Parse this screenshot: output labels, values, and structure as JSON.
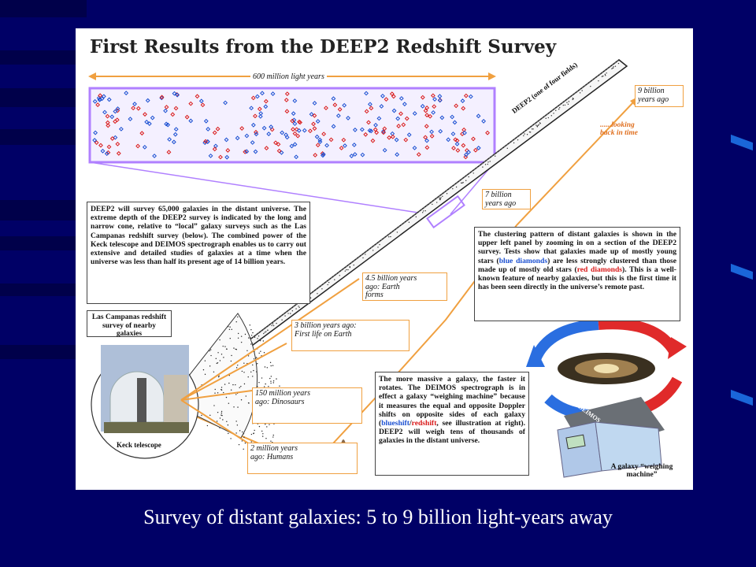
{
  "slide": {
    "caption": "Survey of distant galaxies:  5 to 9 billion light-years away"
  },
  "poster": {
    "title": "First Results from the DEEP2 Redshift Survey",
    "span_label": "600 million light years",
    "cone_label": "DEEP2 (one of four fields)",
    "looking_back": "......looking back in time",
    "intro_text": "DEEP2 will survey 65,000 galaxies in the distant universe.  The extreme depth of the DEEP2 survey is indicated by the long and narrow cone, relative to “local” galaxy surveys such as the Las Campanas redshift survey (below).  The combined power of the Keck telescope and DEIMOS spectrograph enables us to carry out extensive and detailed studies of galaxies at a time when the universe was less than half its present age of 14 billion years.",
    "clustering": {
      "part1": "The clustering pattern of distant galaxies is shown in the upper left panel by zooming in on a section of the DEEP2 survey.  Tests show that galaxies made up of mostly young stars (",
      "blue": "blue diamonds",
      "part2": ") are less strongly clustered than those made up of mostly old stars (",
      "red": "red diamonds",
      "part3": ").  This is a well-known feature of nearby galaxies, but this is the first time it has been seen directly in the universe’s remote past."
    },
    "weighing": {
      "part1": "The more massive a galaxy, the faster it rotates.  The DEIMOS spectrograph is in effect a galaxy “weighing machine” because it measures the equal and opposite Doppler shifts on opposite sides of each galaxy (",
      "blue": "blueshift",
      "sep": "/",
      "red": "redshift",
      "part2": ", see illustration at right).  DEEP2 will weigh tens of thousands of galaxies in the distant universe."
    },
    "las_campanas": "Las Campanas redshift survey of nearby galaxies",
    "keck": "Keck telescope",
    "scale_label": "DEIMOS",
    "weighing_caption": "A galaxy “weighing machine”",
    "timeline": [
      {
        "label": "9 billion years ago"
      },
      {
        "label": "7 billion years ago"
      },
      {
        "label": "4.5 billion years ago: Earth forms"
      },
      {
        "label": "3 billion years ago: First life on Earth"
      },
      {
        "label": "150 million years ago: Dinosaurs"
      },
      {
        "label": "2 million years ago: Humans"
      }
    ],
    "colors": {
      "accent": "#f0a040",
      "panel": "#c090ff",
      "blue": "#1a4fd1",
      "red": "#d91a1a"
    }
  }
}
